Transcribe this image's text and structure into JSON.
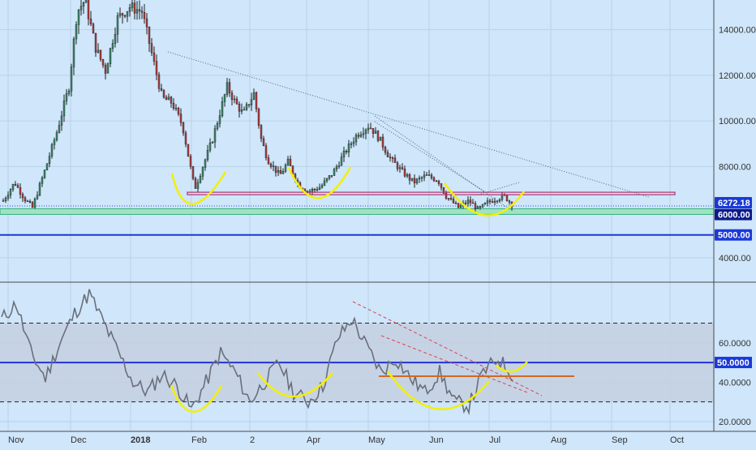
{
  "colors": {
    "background": "#cfe6fb",
    "grid": "#b9d3ea",
    "candle_up": "#3a8a6a",
    "candle_down": "#b23b3b",
    "wick": "#222222",
    "trend_dotted": "#556677",
    "resistance": "#b0306a",
    "support_zone": "#9fe3c2",
    "support_zone_edge": "#35b07c",
    "level_5000": "#2333d8",
    "annotation_yellow": "#f3f000",
    "rsi_line": "#6a6f7a",
    "rsi_band": "#c4cfe0",
    "rsi_mid": "#2333d8",
    "rsi_trend": "#d8444f",
    "rsi_support": "#d2691e",
    "price_label_bg": "#1b39d6",
    "price_label_fg": "#ffffff"
  },
  "chart_data": [
    {
      "type": "candlestick",
      "instrument_note": "",
      "x_ticks": [
        "Nov",
        "Dec",
        "2018",
        "Feb",
        "2",
        "Apr",
        "May",
        "Jun",
        "Jul",
        "Aug",
        "Sep",
        "Oct"
      ],
      "y_ticks": [
        "4000.00",
        "6000.00",
        "8000.00",
        "10000.00",
        "12000.00",
        "14000.00"
      ],
      "ylim": [
        3000,
        15300
      ],
      "current_price_label": "6272.18",
      "level_labels": [
        "6000.00",
        "5000.00"
      ],
      "horizontal_levels": {
        "resistance": 6800,
        "support_low": 5900,
        "support_high": 6150,
        "level": 5000
      },
      "series_approx": [
        [
          "Nov",
          6500
        ],
        [
          "Nov",
          7200
        ],
        [
          "Nov",
          6200
        ],
        [
          "Nov",
          7800
        ],
        [
          "Dec",
          9500
        ],
        [
          "Dec",
          11500
        ],
        [
          "Dec",
          14800
        ],
        [
          "Dec",
          15300
        ],
        [
          "Dec",
          13500
        ],
        [
          "2018",
          14500
        ],
        [
          "2018",
          15000
        ],
        [
          "2018",
          13000
        ],
        [
          "2018",
          11500
        ],
        [
          "Feb",
          10000
        ],
        [
          "Feb",
          8500
        ],
        [
          "Feb",
          6800
        ],
        [
          "Feb",
          8500
        ],
        [
          "Feb",
          10500
        ],
        [
          "2",
          11500
        ],
        [
          "2",
          10000
        ],
        [
          "2",
          11000
        ],
        [
          "2",
          8500
        ],
        [
          "Apr",
          7800
        ],
        [
          "Apr",
          7000
        ],
        [
          "Apr",
          6900
        ],
        [
          "Apr",
          7200
        ],
        [
          "May",
          9000
        ],
        [
          "May",
          9600
        ],
        [
          "May",
          9200
        ],
        [
          "May",
          8500
        ],
        [
          "Jun",
          7500
        ],
        [
          "Jun",
          7600
        ],
        [
          "Jun",
          6500
        ],
        [
          "Jun",
          6200
        ],
        [
          "Jul",
          6500
        ],
        [
          "Jul",
          6800
        ],
        [
          "Jul",
          6300
        ]
      ]
    },
    {
      "type": "line",
      "indicator": "",
      "y_ticks": [
        "20.0000",
        "40.0000",
        "60.0000"
      ],
      "current_value_label": "50.0000",
      "ylim": [
        15,
        90
      ],
      "bands": {
        "upper": 70,
        "lower": 30,
        "mid": 50
      },
      "values_approx": [
        72,
        80,
        55,
        42,
        60,
        75,
        85,
        70,
        55,
        40,
        35,
        44,
        38,
        26,
        40,
        55,
        45,
        30,
        40,
        50,
        35,
        30,
        38,
        62,
        72,
        58,
        45,
        52,
        42,
        35,
        45,
        30,
        28,
        45,
        52,
        44
      ]
    }
  ]
}
